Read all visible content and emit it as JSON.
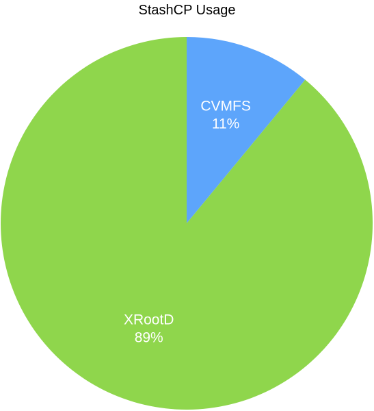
{
  "chart_data": {
    "type": "pie",
    "title": "StashCP Usage",
    "categories": [
      "CVMFS",
      "XRootD"
    ],
    "values": [
      11,
      89
    ],
    "labels": [
      "11%",
      "89%"
    ],
    "colors": {
      "CVMFS": "#5da5fb",
      "XRootD": "#8fd64c"
    },
    "start_angle": "12 o'clock",
    "direction": "clockwise",
    "legend": "none (labels inside slices)"
  }
}
